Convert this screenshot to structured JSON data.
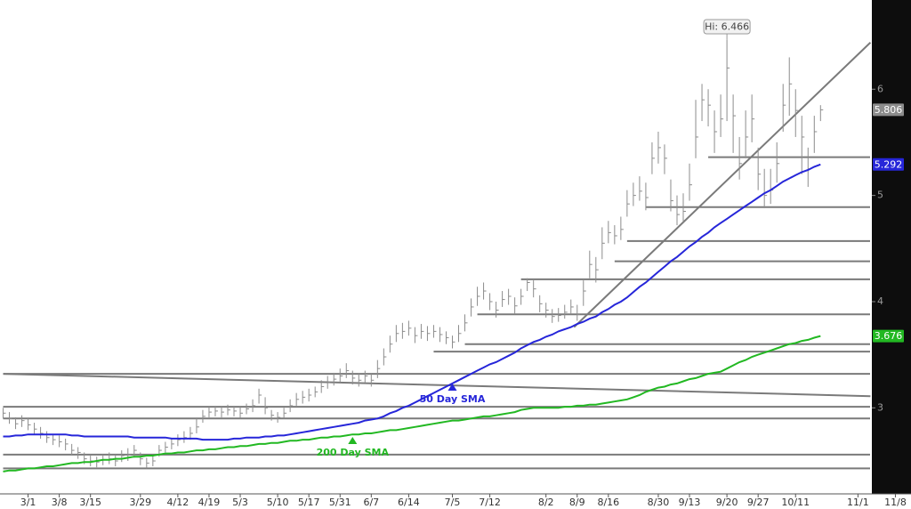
{
  "chart_data": {
    "type": "ohlc",
    "categories": [
      null,
      null,
      null,
      null,
      "3/1",
      null,
      null,
      null,
      null,
      "3/8",
      null,
      null,
      null,
      null,
      "3/15",
      null,
      null,
      null,
      null,
      null,
      null,
      null,
      "3/29",
      null,
      null,
      null,
      null,
      null,
      "4/12",
      null,
      null,
      null,
      null,
      "4/19",
      null,
      null,
      null,
      null,
      "5/3",
      null,
      null,
      null,
      null,
      null,
      "5/10",
      null,
      null,
      null,
      null,
      "5/17",
      null,
      null,
      null,
      null,
      "5/31",
      null,
      null,
      null,
      null,
      "6/7",
      null,
      null,
      null,
      null,
      null,
      "6/14",
      null,
      null,
      null,
      null,
      null,
      null,
      "7/5",
      null,
      null,
      null,
      null,
      null,
      "7/12",
      null,
      null,
      null,
      null,
      null,
      null,
      null,
      null,
      "8/2",
      null,
      null,
      null,
      null,
      "8/9",
      null,
      null,
      null,
      null,
      "8/16",
      null,
      null,
      null,
      null,
      null,
      null,
      null,
      "8/30",
      null,
      null,
      null,
      null,
      "9/13",
      null,
      null,
      null,
      null,
      null,
      "9/20",
      null,
      null,
      null,
      null,
      "9/27",
      null,
      null,
      null,
      null,
      null,
      "10/11",
      null,
      null,
      null,
      null,
      null,
      null,
      null,
      null,
      null,
      "11/1",
      null,
      null,
      null,
      null,
      null,
      "11/8",
      null,
      null
    ],
    "ohlc": {
      "color": "#8c8c8c",
      "high": [
        3.0,
        2.96,
        2.91,
        2.93,
        2.9,
        2.86,
        2.82,
        2.78,
        2.75,
        2.74,
        2.71,
        2.66,
        2.63,
        2.58,
        2.55,
        2.54,
        2.56,
        2.58,
        2.56,
        2.6,
        2.62,
        2.65,
        2.58,
        2.53,
        2.56,
        2.65,
        2.68,
        2.71,
        2.75,
        2.78,
        2.82,
        2.9,
        2.98,
        3.01,
        3.02,
        3.01,
        3.03,
        3.02,
        3.01,
        3.04,
        3.08,
        3.18,
        3.1,
        2.98,
        2.96,
        3.0,
        3.08,
        3.14,
        3.16,
        3.18,
        3.2,
        3.26,
        3.3,
        3.33,
        3.37,
        3.42,
        3.35,
        3.32,
        3.35,
        3.32,
        3.45,
        3.56,
        3.68,
        3.78,
        3.8,
        3.82,
        3.76,
        3.79,
        3.77,
        3.78,
        3.76,
        3.72,
        3.68,
        3.78,
        3.88,
        4.03,
        4.14,
        4.18,
        4.08,
        4.0,
        4.1,
        4.12,
        4.04,
        4.12,
        4.22,
        4.2,
        4.06,
        3.99,
        3.93,
        3.94,
        3.97,
        4.02,
        3.97,
        4.2,
        4.48,
        4.42,
        4.7,
        4.76,
        4.72,
        4.8,
        5.05,
        5.12,
        5.18,
        5.12,
        5.5,
        5.6,
        5.48,
        5.15,
        5.0,
        5.02,
        5.3,
        5.9,
        6.05,
        6.0,
        5.8,
        5.95,
        6.466,
        5.95,
        5.55,
        5.8,
        5.95,
        5.45,
        5.25,
        5.25,
        5.5,
        6.05,
        6.3,
        6.0,
        5.75,
        5.45,
        5.75,
        5.85,
        null,
        null,
        null,
        null,
        null,
        null,
        null,
        null,
        null,
        null,
        null,
        null,
        null,
        null
      ],
      "low": [
        2.9,
        2.85,
        2.8,
        2.82,
        2.79,
        2.75,
        2.71,
        2.67,
        2.65,
        2.63,
        2.6,
        2.55,
        2.52,
        2.47,
        2.45,
        2.44,
        2.46,
        2.47,
        2.45,
        2.49,
        2.5,
        2.53,
        2.46,
        2.43,
        2.45,
        2.54,
        2.58,
        2.61,
        2.64,
        2.67,
        2.7,
        2.76,
        2.86,
        2.91,
        2.92,
        2.91,
        2.93,
        2.92,
        2.9,
        2.94,
        2.96,
        3.04,
        2.94,
        2.88,
        2.86,
        2.9,
        2.96,
        3.02,
        3.04,
        3.06,
        3.1,
        3.14,
        3.18,
        3.21,
        3.24,
        3.28,
        3.22,
        3.2,
        3.24,
        3.2,
        3.28,
        3.4,
        3.52,
        3.62,
        3.65,
        3.68,
        3.61,
        3.65,
        3.63,
        3.66,
        3.62,
        3.6,
        3.56,
        3.62,
        3.72,
        3.86,
        3.96,
        4.02,
        3.92,
        3.85,
        3.95,
        3.97,
        3.88,
        3.97,
        4.1,
        4.04,
        3.9,
        3.85,
        3.8,
        3.81,
        3.84,
        3.88,
        3.82,
        3.96,
        4.22,
        4.18,
        4.4,
        4.55,
        4.54,
        4.58,
        4.8,
        4.9,
        4.95,
        4.86,
        5.2,
        5.3,
        5.2,
        4.85,
        4.72,
        4.75,
        4.95,
        5.35,
        5.7,
        5.65,
        5.4,
        5.55,
        5.7,
        5.4,
        5.15,
        5.35,
        5.5,
        5.05,
        4.88,
        4.92,
        5.12,
        5.6,
        5.75,
        5.55,
        5.2,
        5.08,
        5.4,
        5.7,
        null,
        null,
        null,
        null,
        null,
        null,
        null,
        null,
        null,
        null,
        null,
        null,
        null,
        null
      ],
      "close": [
        2.95,
        2.9,
        2.85,
        2.88,
        2.84,
        2.8,
        2.76,
        2.72,
        2.7,
        2.68,
        2.66,
        2.6,
        2.58,
        2.52,
        2.5,
        2.49,
        2.51,
        2.52,
        2.5,
        2.55,
        2.56,
        2.6,
        2.52,
        2.48,
        2.5,
        2.6,
        2.63,
        2.66,
        2.7,
        2.72,
        2.76,
        2.82,
        2.92,
        2.96,
        2.97,
        2.96,
        2.98,
        2.97,
        2.95,
        2.99,
        3.02,
        3.12,
        3.0,
        2.93,
        2.91,
        2.95,
        3.02,
        3.08,
        3.1,
        3.12,
        3.15,
        3.2,
        3.24,
        3.27,
        3.3,
        3.35,
        3.28,
        3.26,
        3.3,
        3.26,
        3.37,
        3.48,
        3.6,
        3.7,
        3.72,
        3.75,
        3.68,
        3.72,
        3.7,
        3.72,
        3.69,
        3.66,
        3.62,
        3.7,
        3.8,
        3.95,
        4.05,
        4.1,
        4.0,
        3.92,
        4.02,
        4.05,
        3.96,
        4.05,
        4.18,
        4.12,
        3.98,
        3.92,
        3.86,
        3.87,
        3.9,
        3.95,
        3.88,
        4.1,
        4.35,
        4.3,
        4.55,
        4.65,
        4.62,
        4.68,
        4.92,
        5.0,
        5.04,
        4.98,
        5.35,
        5.45,
        5.35,
        4.95,
        4.82,
        4.85,
        5.1,
        5.55,
        5.9,
        5.85,
        5.6,
        5.72,
        6.2,
        5.75,
        5.3,
        5.55,
        5.72,
        5.2,
        5.0,
        5.05,
        5.3,
        5.85,
        6.05,
        5.8,
        5.55,
        5.25,
        5.6,
        5.806,
        null,
        null,
        null,
        null,
        null,
        null,
        null,
        null,
        null,
        null,
        null,
        null,
        null,
        null
      ]
    },
    "series": [
      {
        "name": "50 Day SMA",
        "color": "#2626d9",
        "values": [
          2.73,
          2.73,
          2.74,
          2.74,
          2.75,
          2.75,
          2.75,
          2.75,
          2.75,
          2.75,
          2.75,
          2.74,
          2.74,
          2.73,
          2.73,
          2.73,
          2.73,
          2.73,
          2.73,
          2.73,
          2.73,
          2.72,
          2.72,
          2.72,
          2.72,
          2.72,
          2.72,
          2.71,
          2.71,
          2.71,
          2.71,
          2.71,
          2.7,
          2.7,
          2.7,
          2.7,
          2.7,
          2.71,
          2.71,
          2.72,
          2.72,
          2.72,
          2.73,
          2.73,
          2.74,
          2.74,
          2.75,
          2.76,
          2.77,
          2.78,
          2.79,
          2.8,
          2.81,
          2.82,
          2.83,
          2.84,
          2.85,
          2.86,
          2.88,
          2.89,
          2.9,
          2.92,
          2.95,
          2.97,
          3.0,
          3.02,
          3.05,
          3.08,
          3.11,
          3.14,
          3.17,
          3.2,
          3.23,
          3.26,
          3.29,
          3.32,
          3.35,
          3.38,
          3.41,
          3.43,
          3.46,
          3.49,
          3.52,
          3.56,
          3.59,
          3.62,
          3.64,
          3.67,
          3.69,
          3.72,
          3.74,
          3.76,
          3.79,
          3.81,
          3.84,
          3.86,
          3.9,
          3.93,
          3.97,
          4.0,
          4.04,
          4.09,
          4.14,
          4.18,
          4.23,
          4.28,
          4.33,
          4.38,
          4.42,
          4.47,
          4.52,
          4.56,
          4.61,
          4.65,
          4.7,
          4.74,
          4.78,
          4.82,
          4.86,
          4.9,
          4.94,
          4.98,
          5.02,
          5.05,
          5.09,
          5.13,
          5.16,
          5.19,
          5.22,
          5.24,
          5.27,
          5.292,
          null,
          null,
          null,
          null,
          null,
          null,
          null,
          null,
          null,
          null,
          null,
          null,
          null,
          null
        ]
      },
      {
        "name": "200 Day SMA",
        "color": "#22b822",
        "values": [
          2.4,
          2.41,
          2.41,
          2.42,
          2.43,
          2.43,
          2.44,
          2.45,
          2.45,
          2.46,
          2.47,
          2.48,
          2.48,
          2.49,
          2.49,
          2.5,
          2.51,
          2.51,
          2.52,
          2.52,
          2.53,
          2.54,
          2.54,
          2.55,
          2.55,
          2.56,
          2.57,
          2.57,
          2.58,
          2.58,
          2.59,
          2.6,
          2.6,
          2.61,
          2.61,
          2.62,
          2.63,
          2.63,
          2.64,
          2.64,
          2.65,
          2.66,
          2.66,
          2.67,
          2.67,
          2.68,
          2.69,
          2.69,
          2.7,
          2.7,
          2.71,
          2.72,
          2.72,
          2.73,
          2.73,
          2.74,
          2.75,
          2.75,
          2.76,
          2.76,
          2.77,
          2.78,
          2.79,
          2.79,
          2.8,
          2.81,
          2.82,
          2.83,
          2.84,
          2.85,
          2.86,
          2.87,
          2.88,
          2.88,
          2.89,
          2.9,
          2.91,
          2.92,
          2.92,
          2.93,
          2.94,
          2.95,
          2.96,
          2.98,
          2.99,
          3.0,
          3.0,
          3.0,
          3.0,
          3.0,
          3.01,
          3.01,
          3.02,
          3.02,
          3.03,
          3.03,
          3.04,
          3.05,
          3.06,
          3.07,
          3.08,
          3.1,
          3.12,
          3.15,
          3.17,
          3.19,
          3.2,
          3.22,
          3.23,
          3.25,
          3.27,
          3.28,
          3.3,
          3.32,
          3.33,
          3.34,
          3.37,
          3.4,
          3.43,
          3.45,
          3.48,
          3.5,
          3.52,
          3.54,
          3.56,
          3.58,
          3.6,
          3.61,
          3.63,
          3.64,
          3.66,
          3.676,
          null,
          null,
          null,
          null,
          null,
          null,
          null,
          null,
          null,
          null,
          null,
          null,
          null,
          null
        ]
      }
    ],
    "levels": [
      {
        "value": 5.36,
        "from": 113
      },
      {
        "value": 4.89,
        "from": 103
      },
      {
        "value": 4.57,
        "from": 100
      },
      {
        "value": 4.38,
        "from": 98
      },
      {
        "value": 4.21,
        "from": 83
      },
      {
        "value": 3.88,
        "from": 76
      },
      {
        "value": 3.6,
        "from": 74
      },
      {
        "value": 3.53,
        "from": 69
      },
      {
        "value": 3.32,
        "from": 0
      },
      {
        "value": 3.01,
        "from": 0
      },
      {
        "value": 2.9,
        "from": 0
      },
      {
        "value": 2.56,
        "from": 0
      },
      {
        "value": 2.43,
        "from": 0
      }
    ],
    "trendlines": [
      {
        "x": [
          0,
          139
        ],
        "y": [
          3.32,
          3.11
        ]
      },
      {
        "x": [
          91.5,
          139
        ],
        "y": [
          3.76,
          6.44
        ]
      }
    ],
    "high_label": "Hi: 6.466",
    "level_color": "#7a7a7a",
    "ylim": [
      2.19,
      6.84
    ],
    "yticks": [
      3,
      4,
      5,
      6
    ],
    "grid": false
  }
}
